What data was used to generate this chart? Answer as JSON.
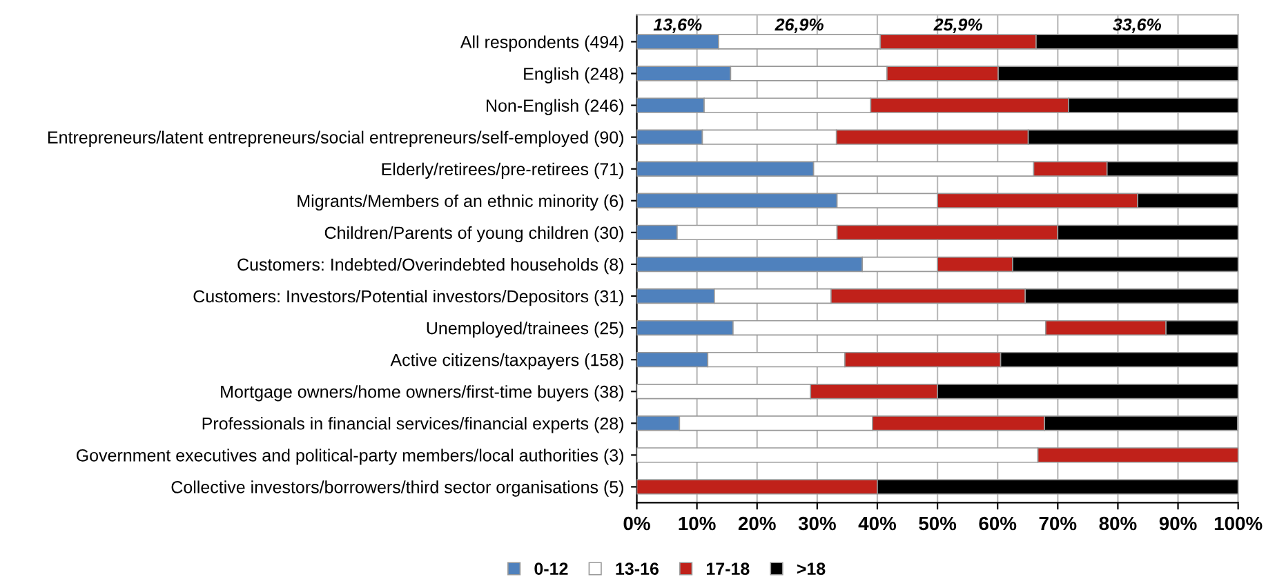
{
  "chart_data": {
    "type": "bar",
    "orientation": "horizontal",
    "stacked": true,
    "categories": [
      "All respondents (494)",
      "English (248)",
      "Non-English (246)",
      "Entrepreneurs/latent entrepreneurs/social entrepreneurs/self-employed (90)",
      "Elderly/retirees/pre-retirees (71)",
      "Migrants/Members of an ethnic minority (6)",
      "Children/Parents of young children (30)",
      "Customers: Indebted/Overindebted households (8)",
      "Customers: Investors/Potential investors/Depositors (31)",
      "Unemployed/trainees (25)",
      "Active citizens/taxpayers (158)",
      "Mortgage owners/home owners/first-time buyers (38)",
      "Professionals in financial services/financial experts (28)",
      "Government executives and political-party members/local authorities (3)",
      "Collective investors/borrowers/third sector organisations (5)"
    ],
    "series": [
      {
        "name": "0-12",
        "color": "#4f81bd",
        "values": [
          13.6,
          15.6,
          11.2,
          10.9,
          29.4,
          33.3,
          6.7,
          37.5,
          12.9,
          16.0,
          11.8,
          0,
          7.1,
          0,
          0
        ],
        "value_labels": [
          "13,6%",
          null,
          null,
          null,
          null,
          null,
          null,
          null,
          null,
          null,
          null,
          null,
          null,
          null,
          null
        ]
      },
      {
        "name": "13-16",
        "color": "#ffffff",
        "values": [
          26.9,
          26.0,
          27.7,
          22.3,
          36.6,
          16.7,
          26.6,
          12.5,
          19.4,
          52.0,
          22.8,
          28.9,
          32.1,
          66.7,
          0
        ],
        "value_labels": [
          "26,9%",
          null,
          null,
          null,
          null,
          null,
          null,
          null,
          null,
          null,
          null,
          null,
          null,
          null,
          null
        ]
      },
      {
        "name": "17-18",
        "color": "#c0211a",
        "values": [
          25.9,
          18.5,
          32.9,
          31.9,
          12.2,
          33.3,
          36.7,
          12.5,
          32.3,
          20.0,
          25.9,
          21.1,
          28.6,
          33.3,
          40.0
        ],
        "value_labels": [
          "25,9%",
          null,
          null,
          null,
          null,
          null,
          null,
          null,
          null,
          null,
          null,
          null,
          null,
          null,
          null
        ]
      },
      {
        "name": ">18",
        "color": "#000000",
        "values": [
          33.6,
          39.9,
          28.2,
          34.9,
          21.8,
          16.7,
          30.0,
          37.5,
          35.5,
          12.0,
          39.5,
          50.0,
          32.1,
          0,
          60.0
        ],
        "value_labels": [
          "33,6%",
          null,
          null,
          null,
          null,
          null,
          null,
          null,
          null,
          null,
          null,
          null,
          null,
          null,
          null
        ]
      }
    ],
    "xlim": [
      0,
      100
    ],
    "xticks": [
      {
        "value": 0,
        "label": "0%"
      },
      {
        "value": 10,
        "label": "10%"
      },
      {
        "value": 20,
        "label": "20%"
      },
      {
        "value": 30,
        "label": "30%"
      },
      {
        "value": 40,
        "label": "40%"
      },
      {
        "value": 50,
        "label": "50%"
      },
      {
        "value": 60,
        "label": "60%"
      },
      {
        "value": 70,
        "label": "70%"
      },
      {
        "value": 80,
        "label": "80%"
      },
      {
        "value": 90,
        "label": "90%"
      },
      {
        "value": 100,
        "label": "100%"
      }
    ],
    "grid": "x",
    "legend": "bottom"
  }
}
